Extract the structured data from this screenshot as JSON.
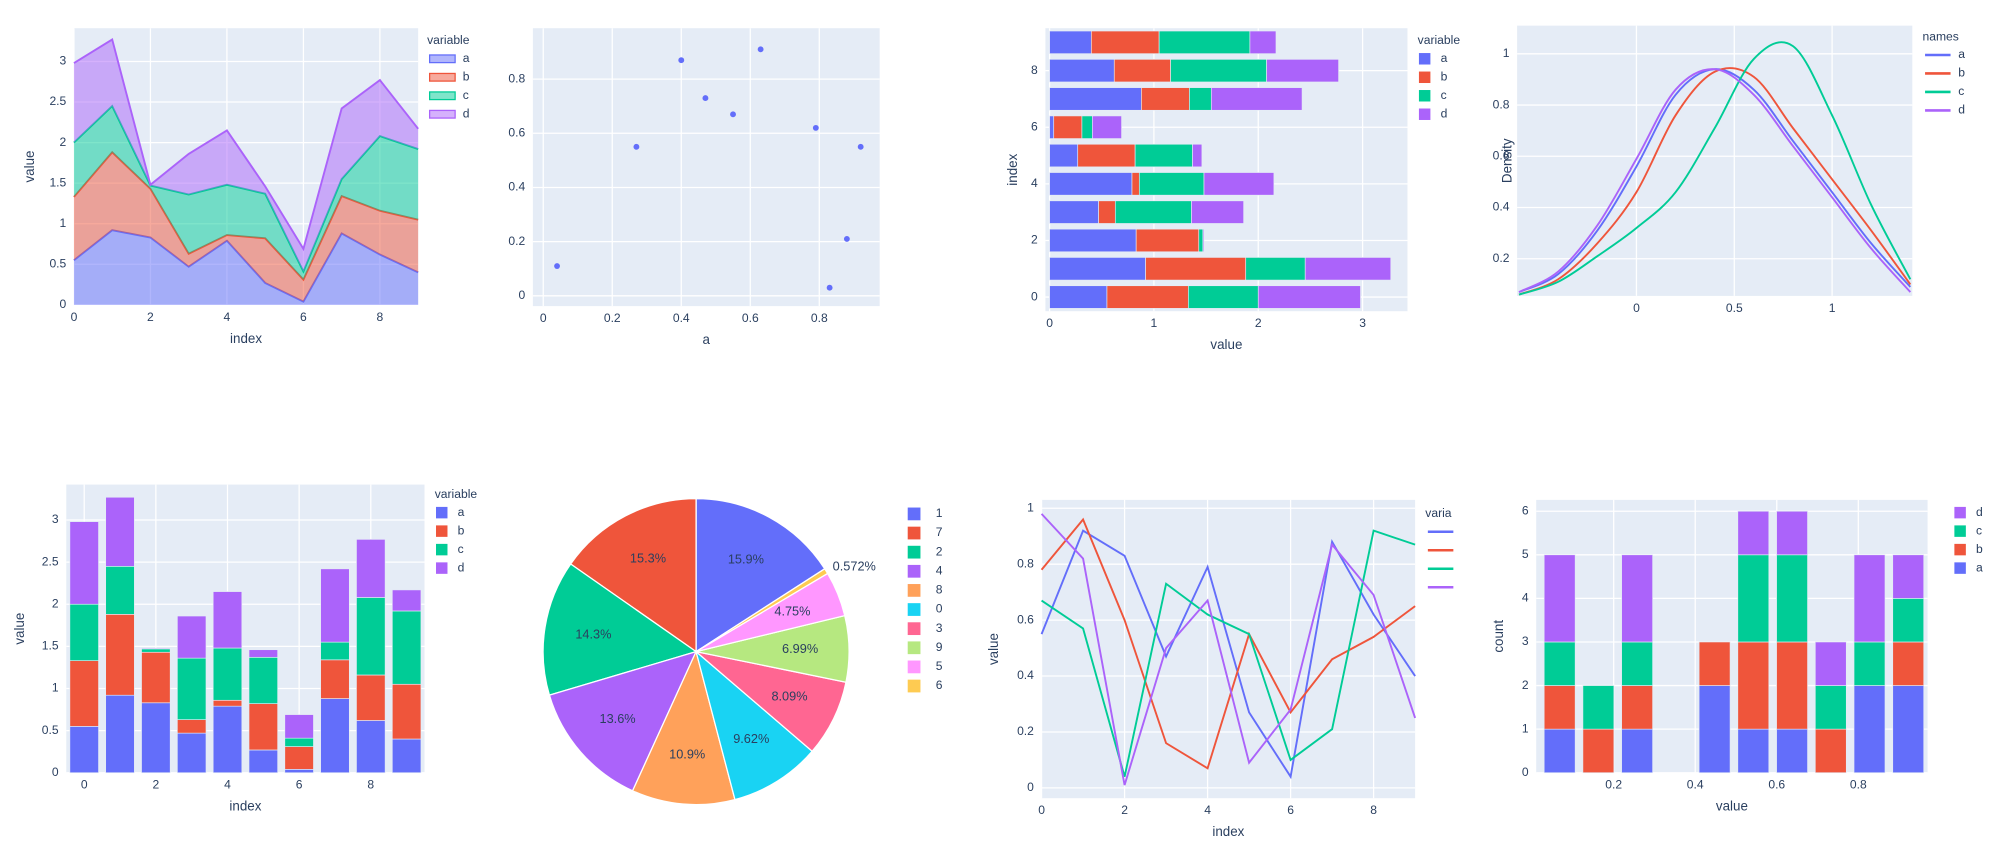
{
  "chart_data": [
    {
      "type": "area",
      "x": [
        0,
        1,
        2,
        3,
        4,
        5,
        6,
        7,
        8,
        9
      ],
      "xlim": [
        0,
        9
      ],
      "xticks": [
        0,
        2,
        4,
        6,
        8
      ],
      "ylim": [
        0,
        3.41
      ],
      "yticks": [
        0,
        0.5,
        1,
        1.5,
        2,
        2.5,
        3
      ],
      "xlabel": "index",
      "ylabel": "value",
      "legend_title": "variable",
      "grid": true,
      "series": [
        {
          "name": "a",
          "color": "#636efa",
          "values": [
            0.55,
            0.92,
            0.83,
            0.47,
            0.79,
            0.27,
            0.04,
            0.88,
            0.62,
            0.4
          ]
        },
        {
          "name": "b",
          "color": "#EF553B",
          "values": [
            0.78,
            0.96,
            0.6,
            0.16,
            0.07,
            0.55,
            0.27,
            0.46,
            0.54,
            0.65
          ]
        },
        {
          "name": "c",
          "color": "#00cc96",
          "values": [
            0.67,
            0.57,
            0.04,
            0.73,
            0.62,
            0.55,
            0.1,
            0.21,
            0.92,
            0.87
          ]
        },
        {
          "name": "d",
          "color": "#ab63fa",
          "values": [
            0.98,
            0.82,
            0.01,
            0.5,
            0.67,
            0.09,
            0.28,
            0.87,
            0.69,
            0.25
          ]
        }
      ]
    },
    {
      "type": "scatter",
      "x": [
        0.04,
        0.27,
        0.4,
        0.47,
        0.55,
        0.63,
        0.79,
        0.83,
        0.88,
        0.92
      ],
      "values": [
        0.11,
        0.55,
        0.87,
        0.73,
        0.67,
        0.91,
        0.62,
        0.03,
        0.21,
        0.55
      ],
      "color": "#636efa",
      "xlim": [
        -0.03,
        0.975
      ],
      "xticks": [
        0,
        0.2,
        0.4,
        0.6,
        0.8
      ],
      "ylim": [
        -0.038,
        0.988
      ],
      "yticks": [
        0,
        0.2,
        0.4,
        0.6,
        0.8
      ],
      "xlabel": "a",
      "grid": true
    },
    {
      "type": "hbar",
      "y": [
        0,
        1,
        2,
        3,
        4,
        5,
        6,
        7,
        8,
        9
      ],
      "ylim": [
        -0.5,
        9.5
      ],
      "yticks": [
        0,
        2,
        4,
        6,
        8
      ],
      "xlim": [
        -0.04,
        3.43
      ],
      "xticks": [
        0,
        1,
        2,
        3
      ],
      "xlabel": "value",
      "ylabel": "index",
      "legend_title": "variable",
      "grid": true,
      "series": [
        {
          "name": "a",
          "color": "#636efa",
          "values": [
            0.55,
            0.92,
            0.83,
            0.47,
            0.79,
            0.27,
            0.04,
            0.88,
            0.62,
            0.4
          ]
        },
        {
          "name": "b",
          "color": "#EF553B",
          "values": [
            0.78,
            0.96,
            0.6,
            0.16,
            0.07,
            0.55,
            0.27,
            0.46,
            0.54,
            0.65
          ]
        },
        {
          "name": "c",
          "color": "#00cc96",
          "values": [
            0.67,
            0.57,
            0.04,
            0.73,
            0.62,
            0.55,
            0.1,
            0.21,
            0.92,
            0.87
          ]
        },
        {
          "name": "d",
          "color": "#ab63fa",
          "values": [
            0.98,
            0.82,
            0.01,
            0.5,
            0.67,
            0.09,
            0.28,
            0.87,
            0.69,
            0.25
          ]
        }
      ]
    },
    {
      "type": "density",
      "x": [
        -0.6,
        -0.4,
        -0.2,
        0,
        0.2,
        0.4,
        0.6,
        0.8,
        1,
        1.2,
        1.4
      ],
      "xlim": [
        -0.61,
        1.41
      ],
      "xticks": [
        0,
        0.5,
        1
      ],
      "ylim": [
        0.055,
        1.11
      ],
      "yticks": [
        0.2,
        0.4,
        0.6,
        0.8,
        1
      ],
      "ylabel": "Density",
      "legend_title": "names",
      "grid": true,
      "series": [
        {
          "name": "a",
          "color": "#636efa",
          "values": [
            0.07,
            0.14,
            0.31,
            0.56,
            0.84,
            0.94,
            0.86,
            0.66,
            0.46,
            0.26,
            0.09
          ]
        },
        {
          "name": "b",
          "color": "#EF553B",
          "values": [
            0.06,
            0.12,
            0.26,
            0.46,
            0.76,
            0.93,
            0.91,
            0.71,
            0.51,
            0.31,
            0.1
          ]
        },
        {
          "name": "c",
          "color": "#00cc96",
          "values": [
            0.06,
            0.11,
            0.21,
            0.32,
            0.46,
            0.71,
            0.98,
            1.03,
            0.76,
            0.41,
            0.12
          ]
        },
        {
          "name": "d",
          "color": "#ab63fa",
          "values": [
            0.07,
            0.15,
            0.33,
            0.59,
            0.86,
            0.94,
            0.84,
            0.64,
            0.44,
            0.24,
            0.07
          ]
        }
      ]
    },
    {
      "type": "stacked_bar",
      "x": [
        0,
        1,
        2,
        3,
        4,
        5,
        6,
        7,
        8,
        9
      ],
      "xlim": [
        -0.5,
        9.5
      ],
      "xticks": [
        0,
        2,
        4,
        6,
        8
      ],
      "ylim": [
        0,
        3.42
      ],
      "yticks": [
        0,
        0.5,
        1,
        1.5,
        2,
        2.5,
        3
      ],
      "xlabel": "index",
      "ylabel": "value",
      "legend_title": "variable",
      "grid": true,
      "series": [
        {
          "name": "a",
          "color": "#636efa",
          "values": [
            0.55,
            0.92,
            0.83,
            0.47,
            0.79,
            0.27,
            0.04,
            0.88,
            0.62,
            0.4
          ]
        },
        {
          "name": "b",
          "color": "#EF553B",
          "values": [
            0.78,
            0.96,
            0.6,
            0.16,
            0.07,
            0.55,
            0.27,
            0.46,
            0.54,
            0.65
          ]
        },
        {
          "name": "c",
          "color": "#00cc96",
          "values": [
            0.67,
            0.57,
            0.04,
            0.73,
            0.62,
            0.55,
            0.1,
            0.21,
            0.92,
            0.87
          ]
        },
        {
          "name": "d",
          "color": "#ab63fa",
          "values": [
            0.98,
            0.82,
            0.01,
            0.5,
            0.67,
            0.09,
            0.28,
            0.87,
            0.69,
            0.25
          ]
        }
      ]
    },
    {
      "type": "pie",
      "labels": [
        "1",
        "7",
        "2",
        "4",
        "8",
        "0",
        "3",
        "9",
        "5",
        "6"
      ],
      "values": [
        15.9,
        15.3,
        14.3,
        13.6,
        10.9,
        9.62,
        8.09,
        6.99,
        4.75,
        0.572
      ],
      "value_labels": [
        "15.9%",
        "15.3%",
        "14.3%",
        "13.6%",
        "10.9%",
        "9.62%",
        "8.09%",
        "6.99%",
        "4.75%",
        "0.572%"
      ],
      "colors": [
        "#636efa",
        "#EF553B",
        "#00cc96",
        "#ab63fa",
        "#FFA15A",
        "#19d3f3",
        "#FF6692",
        "#B6E880",
        "#FF97FF",
        "#FECB52"
      ]
    },
    {
      "type": "line",
      "x": [
        0,
        1,
        2,
        3,
        4,
        5,
        6,
        7,
        8,
        9
      ],
      "xlim": [
        0,
        9
      ],
      "xticks": [
        0,
        2,
        4,
        6,
        8
      ],
      "ylim": [
        -0.037,
        1.03
      ],
      "yticks": [
        0,
        0.2,
        0.4,
        0.6,
        0.8,
        1
      ],
      "xlabel": "index",
      "ylabel": "value",
      "legend_title": "varia",
      "grid": true,
      "series": [
        {
          "color": "#636efa",
          "values": [
            0.55,
            0.92,
            0.83,
            0.47,
            0.79,
            0.27,
            0.04,
            0.88,
            0.62,
            0.4
          ]
        },
        {
          "color": "#EF553B",
          "values": [
            0.78,
            0.96,
            0.6,
            0.16,
            0.07,
            0.55,
            0.27,
            0.46,
            0.54,
            0.65
          ]
        },
        {
          "color": "#00cc96",
          "values": [
            0.67,
            0.57,
            0.04,
            0.73,
            0.62,
            0.55,
            0.1,
            0.21,
            0.92,
            0.87
          ]
        },
        {
          "color": "#ab63fa",
          "values": [
            0.98,
            0.82,
            0.01,
            0.5,
            0.67,
            0.09,
            0.28,
            0.87,
            0.69,
            0.25
          ]
        }
      ]
    },
    {
      "type": "histogram",
      "bins": [
        0.02,
        0.115,
        0.21,
        0.305,
        0.4,
        0.495,
        0.59,
        0.685,
        0.78,
        0.875,
        0.97
      ],
      "xlim": [
        0.01,
        0.97
      ],
      "xticks": [
        0.2,
        0.4,
        0.6,
        0.8
      ],
      "ylim": [
        0,
        6.26
      ],
      "yticks": [
        0,
        1,
        2,
        3,
        4,
        5,
        6
      ],
      "xlabel": "value",
      "ylabel": "count",
      "grid": true,
      "series": [
        {
          "name": "d",
          "color": "#ab63fa",
          "values": [
            2,
            0,
            2,
            0,
            0,
            1,
            1,
            1,
            2,
            1
          ]
        },
        {
          "name": "c",
          "color": "#00cc96",
          "values": [
            1,
            1,
            1,
            0,
            0,
            2,
            2,
            1,
            1,
            1
          ]
        },
        {
          "name": "b",
          "color": "#EF553B",
          "values": [
            1,
            1,
            1,
            0,
            1,
            2,
            2,
            1,
            0,
            1
          ]
        },
        {
          "name": "a",
          "color": "#636efa",
          "values": [
            1,
            0,
            1,
            0,
            2,
            1,
            1,
            0,
            2,
            2
          ]
        }
      ]
    }
  ]
}
